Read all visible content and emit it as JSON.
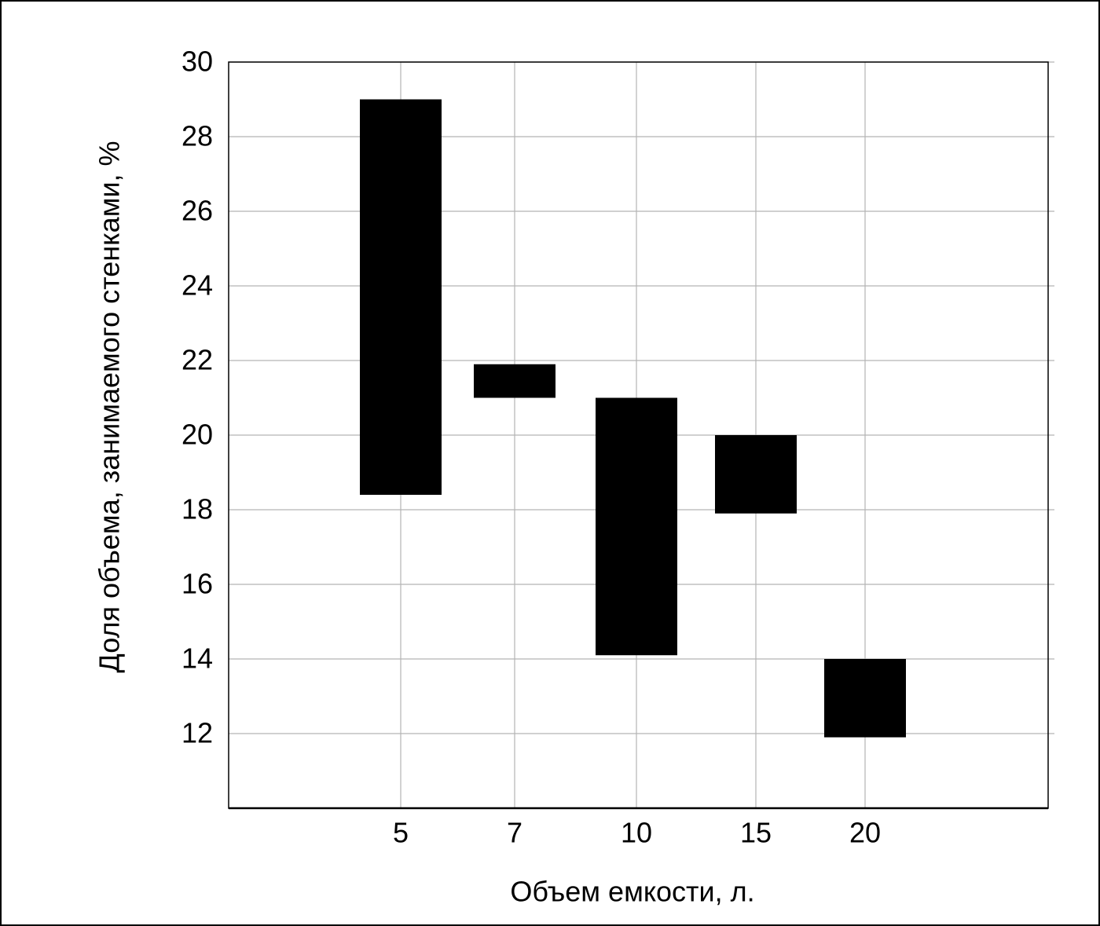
{
  "chart_data": {
    "type": "range_bar",
    "x_label": "Объем емкости, л.",
    "y_label": "Доля объема, занимаемого стенками, %",
    "categories": [
      "5",
      "7",
      "10",
      "15",
      "20"
    ],
    "low": [
      18.4,
      21.0,
      14.1,
      17.9,
      11.9
    ],
    "high": [
      29.0,
      21.9,
      21.0,
      20.0,
      14.0
    ],
    "color": "#000000",
    "ylim": [
      10,
      30
    ],
    "yticks": [
      12,
      14,
      16,
      18,
      20,
      22,
      24,
      26,
      28,
      30
    ],
    "grid": true
  }
}
